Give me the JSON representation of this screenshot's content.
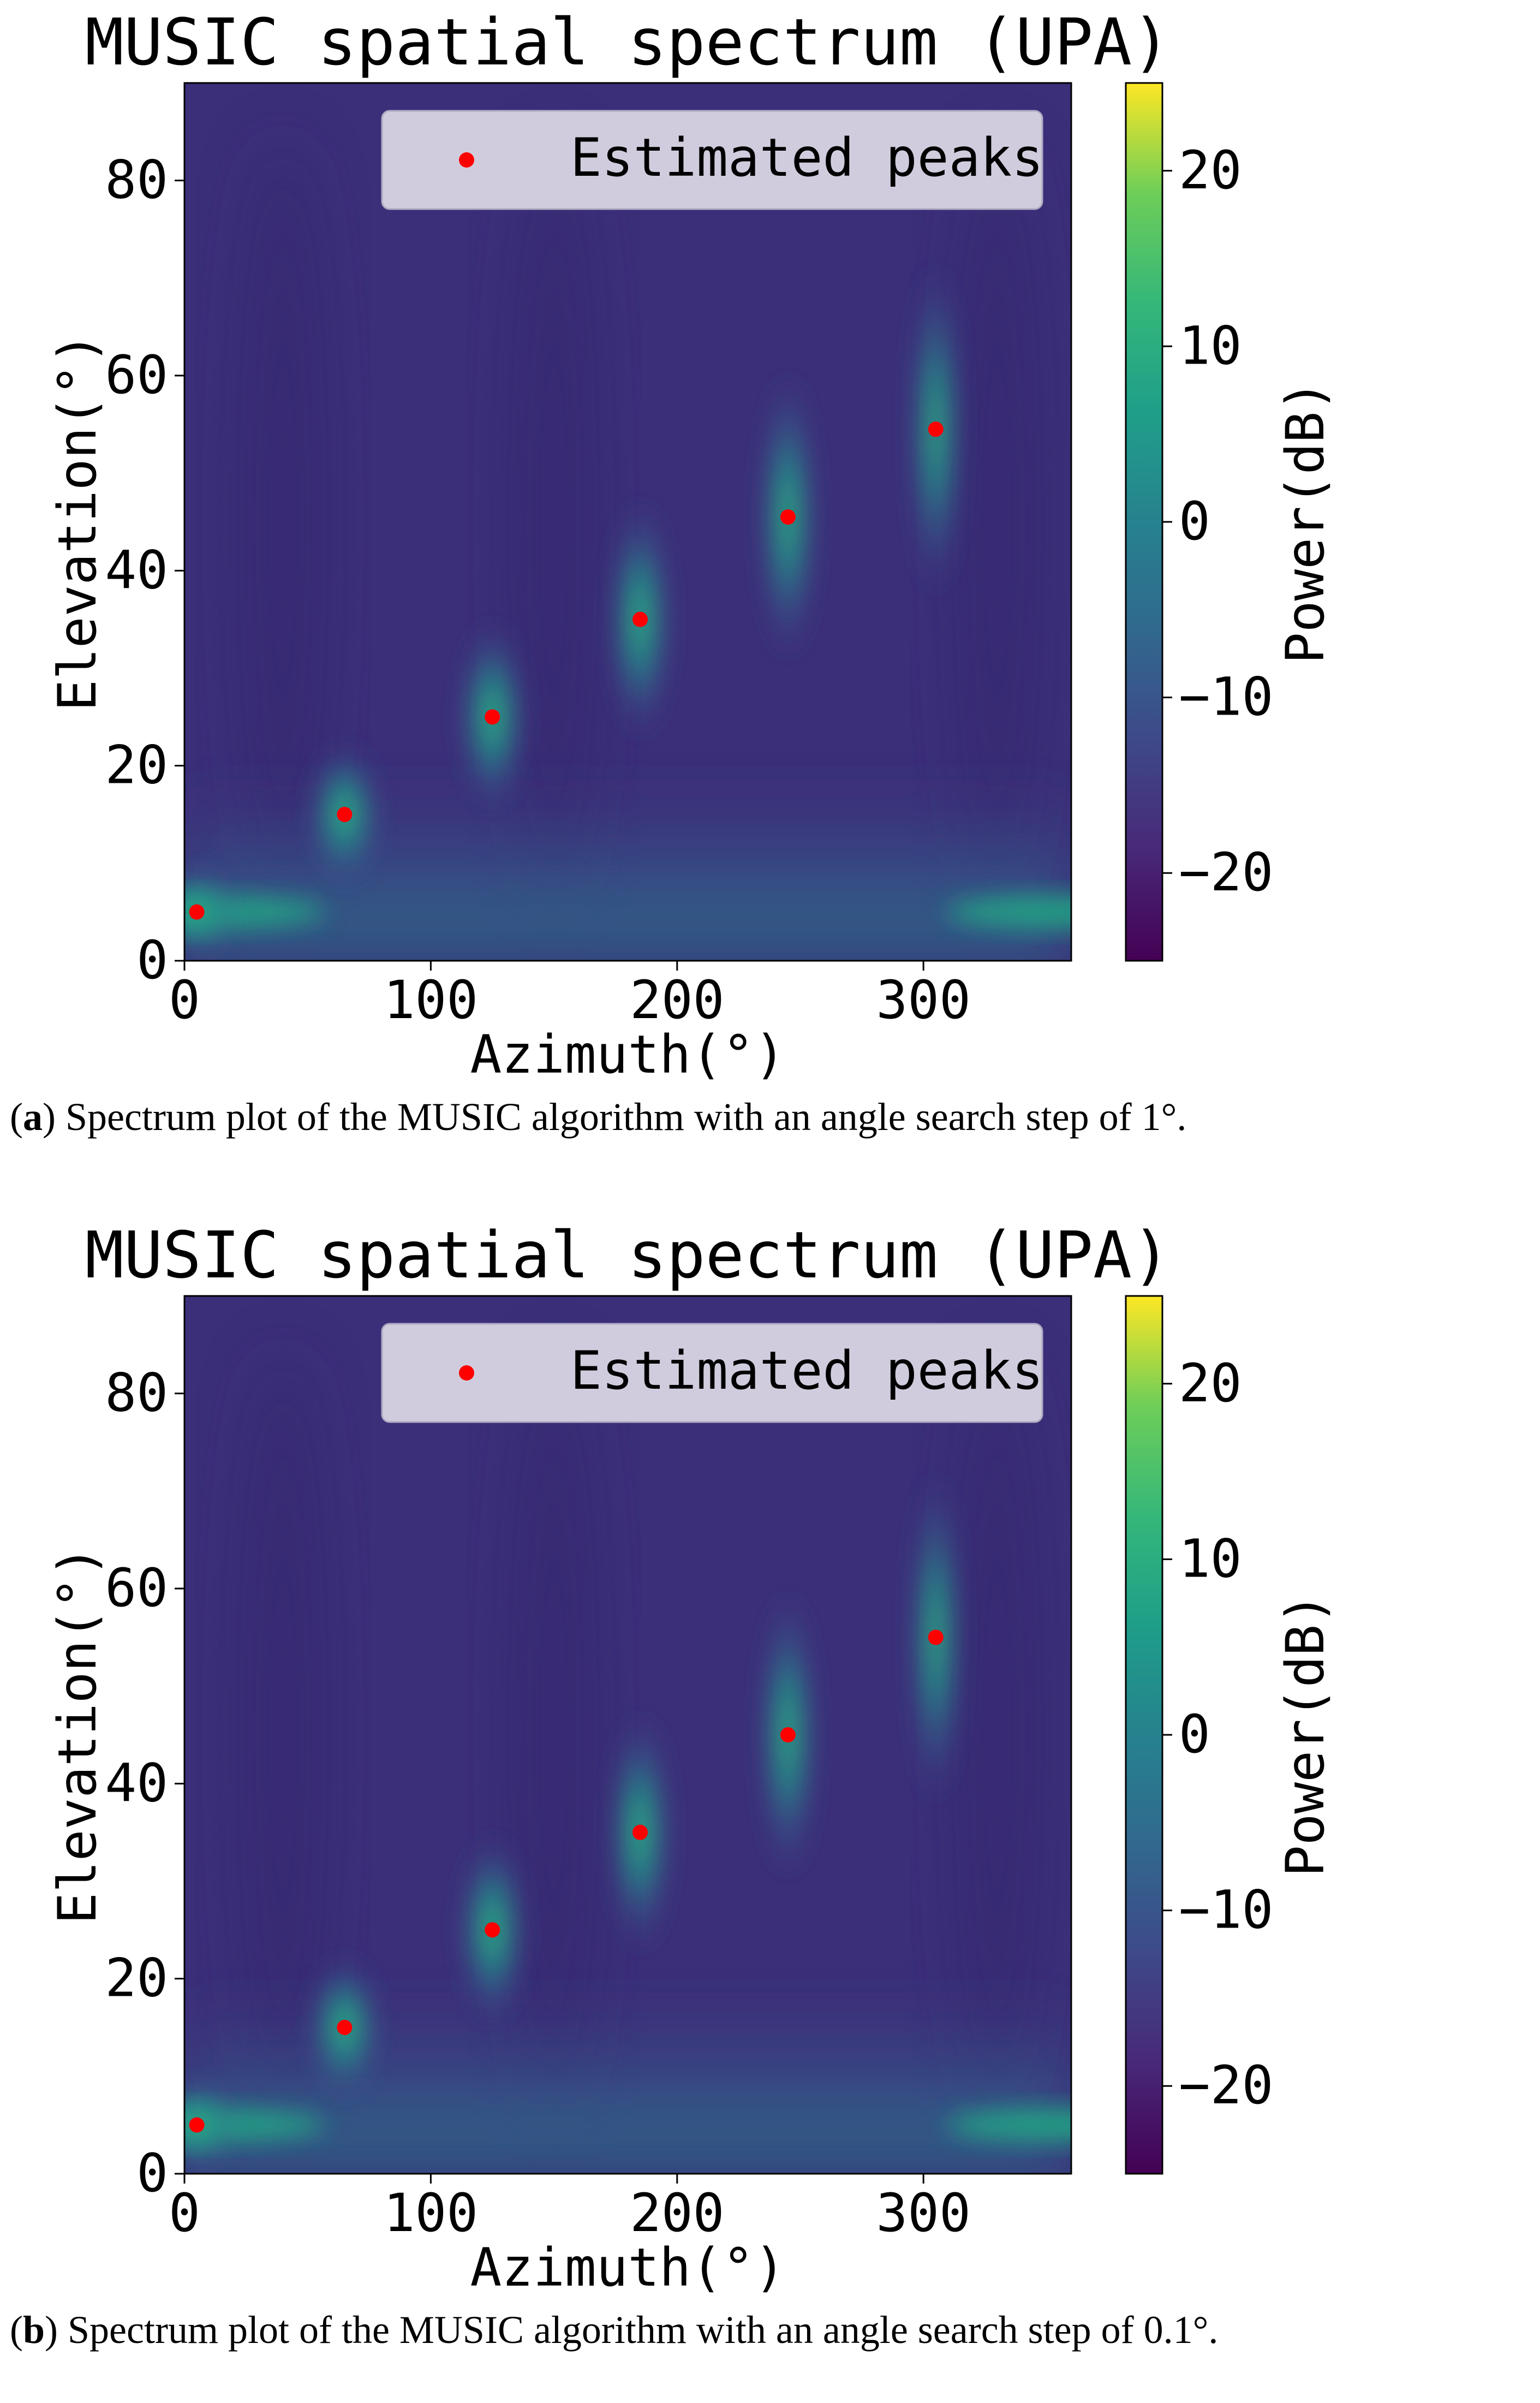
{
  "figure": {
    "panels": [
      {
        "label": "a",
        "caption": "Spectrum plot of the MUSIC algorithm with an angle search step of 1°."
      },
      {
        "label": "b",
        "caption": "Spectrum plot of the MUSIC algorithm with an angle search step of 0.1°."
      }
    ]
  },
  "chart_data": [
    {
      "type": "heatmap",
      "title": "MUSIC spatial spectrum (UPA)",
      "xlabel": "Azimuth(°)",
      "ylabel": "Elevation(°)",
      "xlim": [
        0,
        360
      ],
      "ylim": [
        0,
        90
      ],
      "xticks": [
        0,
        100,
        200,
        300
      ],
      "yticks": [
        0,
        20,
        40,
        60,
        80
      ],
      "colorbar": {
        "label": "Power(dB)",
        "range": [
          -25,
          25
        ],
        "ticks": [
          -20,
          -10,
          0,
          10,
          20
        ],
        "colormap": "viridis"
      },
      "legend": {
        "label": "Estimated peaks",
        "location": "top-right"
      },
      "peaks": {
        "name": "Estimated peaks",
        "azimuth": [
          5,
          65,
          125,
          185,
          245,
          305
        ],
        "elevation": [
          5,
          15,
          25,
          35,
          45.5,
          54.5
        ],
        "color": "#ff0000"
      }
    },
    {
      "type": "heatmap",
      "title": "MUSIC spatial spectrum (UPA)",
      "xlabel": "Azimuth(°)",
      "ylabel": "Elevation(°)",
      "xlim": [
        0,
        360
      ],
      "ylim": [
        0,
        90
      ],
      "xticks": [
        0,
        100,
        200,
        300
      ],
      "yticks": [
        0,
        20,
        40,
        60,
        80
      ],
      "colorbar": {
        "label": "Power(dB)",
        "range": [
          -25,
          25
        ],
        "ticks": [
          -20,
          -10,
          0,
          10,
          20
        ],
        "colormap": "viridis"
      },
      "legend": {
        "label": "Estimated peaks",
        "location": "top-right"
      },
      "peaks": {
        "name": "Estimated peaks",
        "azimuth": [
          5,
          65,
          125,
          185,
          245,
          305
        ],
        "elevation": [
          5,
          15,
          25,
          35,
          45,
          55
        ],
        "color": "#ff0000"
      }
    }
  ],
  "colors": {
    "background_field": "#3b2f79",
    "peak_marker": "#ff0000",
    "legend_bg": "#dad5e3"
  }
}
